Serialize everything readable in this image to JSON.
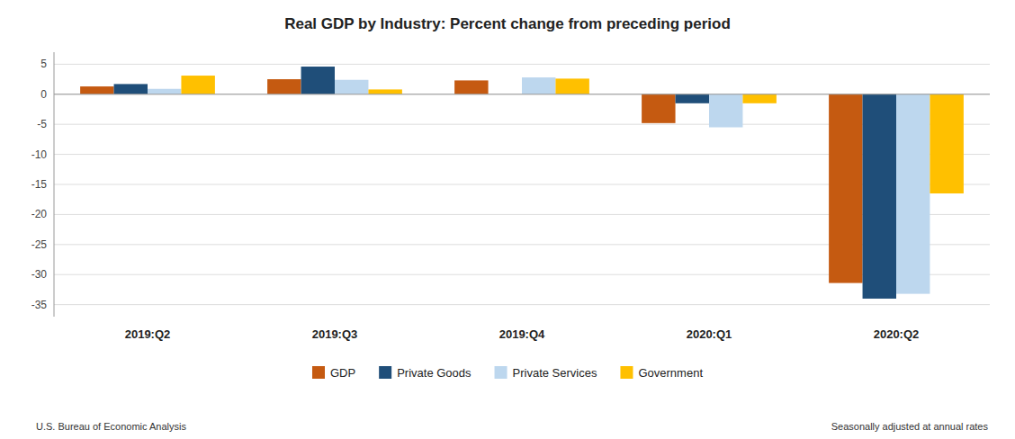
{
  "chart_data": {
    "type": "bar",
    "title": "Real GDP by Industry:  Percent change from preceding period",
    "categories": [
      "2019:Q2",
      "2019:Q3",
      "2019:Q4",
      "2020:Q1",
      "2020:Q2"
    ],
    "series": [
      {
        "name": "GDP",
        "color": "#C55A11",
        "values": [
          1.3,
          2.5,
          2.3,
          -4.8,
          -31.4
        ]
      },
      {
        "name": "Private Goods",
        "color": "#1F4E79",
        "values": [
          1.7,
          4.6,
          0.0,
          -1.5,
          -34.0
        ]
      },
      {
        "name": "Private Services",
        "color": "#BDD7EE",
        "values": [
          0.9,
          2.4,
          2.8,
          -5.5,
          -33.2
        ]
      },
      {
        "name": "Government",
        "color": "#FFC000",
        "values": [
          3.1,
          0.8,
          2.6,
          -1.5,
          -16.5
        ]
      }
    ],
    "ylim": [
      -37,
      7
    ],
    "yticks": [
      5,
      0,
      -5,
      -10,
      -15,
      -20,
      -25,
      -30,
      -35
    ],
    "grid": true,
    "legend": "bottom",
    "annotations": [
      "U.S. Bureau of Economic Analysis",
      "Seasonally adjusted at annual rates"
    ]
  }
}
